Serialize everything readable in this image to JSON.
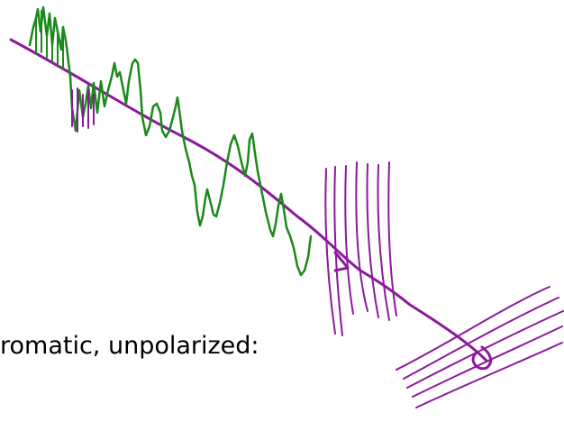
{
  "caption": "romatic, unpolarized:",
  "colors": {
    "wave": "#1a8a1a",
    "ray": "#8b1a9b",
    "text": "#000000"
  }
}
